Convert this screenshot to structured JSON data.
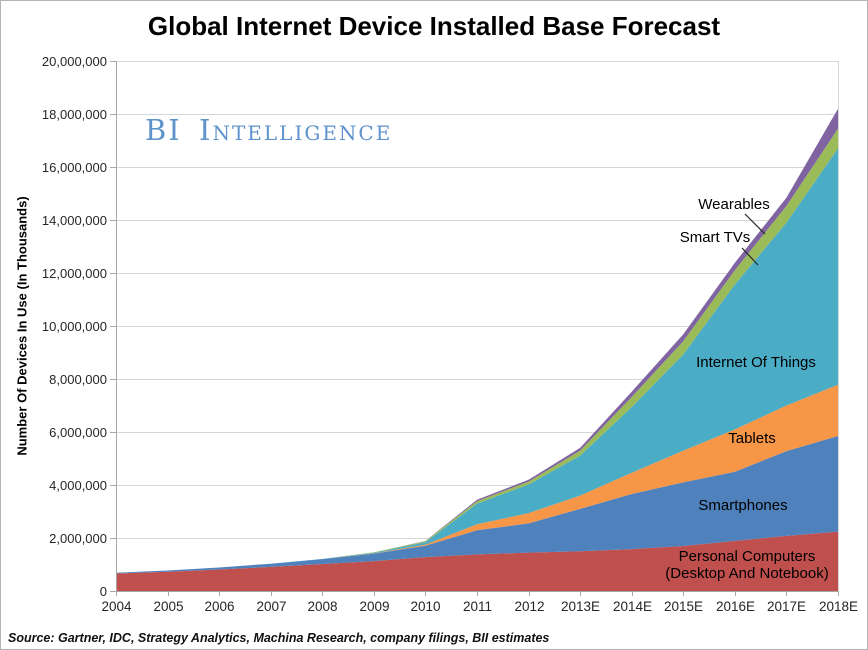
{
  "page": {
    "title": "Global Internet Device Installed Base Forecast",
    "watermark": "BI Intelligence",
    "source": "Source: Gartner, IDC, Strategy Analytics, Machina Research, company filings, BII estimates"
  },
  "chart_data": {
    "type": "area",
    "stacked": true,
    "title": "Global Internet Device Installed Base Forecast",
    "xlabel": "",
    "ylabel": "Number Of Devices In Use (In Thousands)",
    "ylim": [
      0,
      20000000
    ],
    "ytick_step": 2000000,
    "ytick_labels": [
      "0",
      "2,000,000",
      "4,000,000",
      "6,000,000",
      "8,000,000",
      "10,000,000",
      "12,000,000",
      "14,000,000",
      "16,000,000",
      "18,000,000",
      "20,000,000"
    ],
    "grid": true,
    "legend_position": "labels-inside-chart",
    "categories": [
      "2004",
      "2005",
      "2006",
      "2007",
      "2008",
      "2009",
      "2010",
      "2011",
      "2012",
      "2013E",
      "2014E",
      "2015E",
      "2016E",
      "2017E",
      "2018E"
    ],
    "series": [
      {
        "name": "Personal Computers (Desktop And Notebook)",
        "color": "#C0504D",
        "values": [
          660000,
          730000,
          810000,
          910000,
          1020000,
          1130000,
          1280000,
          1380000,
          1450000,
          1500000,
          1580000,
          1700000,
          1890000,
          2080000,
          2240000
        ]
      },
      {
        "name": "Smartphones",
        "color": "#4F81BD",
        "values": [
          25000,
          45000,
          75000,
          120000,
          185000,
          280000,
          430000,
          910000,
          1100000,
          1600000,
          2080000,
          2400000,
          2610000,
          3200000,
          3610000
        ]
      },
      {
        "name": "Tablets",
        "color": "#F79646",
        "values": [
          0,
          0,
          0,
          0,
          0,
          10000,
          40000,
          230000,
          390000,
          500000,
          800000,
          1200000,
          1600000,
          1720000,
          1930000
        ]
      },
      {
        "name": "Internet Of Things",
        "color": "#4BACC6",
        "values": [
          0,
          0,
          0,
          0,
          5000,
          25000,
          90000,
          780000,
          1080000,
          1510000,
          2480000,
          3630000,
          5470000,
          6900000,
          8920000
        ]
      },
      {
        "name": "Smart TVs",
        "color": "#9BBB59",
        "values": [
          0,
          0,
          0,
          0,
          0,
          15000,
          40000,
          90000,
          110000,
          190000,
          380000,
          500000,
          540000,
          630000,
          750000
        ]
      },
      {
        "name": "Wearables",
        "color": "#8064A2",
        "values": [
          0,
          0,
          0,
          0,
          0,
          0,
          5000,
          50000,
          70000,
          100000,
          200000,
          260000,
          280000,
          310000,
          750000
        ]
      }
    ],
    "annotations": [
      {
        "id": "wearables",
        "text": "Wearables",
        "x": 733,
        "y": 208,
        "line": [
          744,
          213,
          764,
          233
        ]
      },
      {
        "id": "smart-tvs",
        "text": "Smart TVs",
        "x": 714,
        "y": 241,
        "line": [
          741,
          247,
          757,
          264
        ]
      },
      {
        "id": "internet-of-things",
        "text": "Internet Of Things",
        "x": 755,
        "y": 366
      },
      {
        "id": "tablets",
        "text": "Tablets",
        "x": 751,
        "y": 442
      },
      {
        "id": "smartphones",
        "text": "Smartphones",
        "x": 742,
        "y": 509
      },
      {
        "id": "personal-computers-1",
        "text": "Personal Computers",
        "x": 746,
        "y": 560
      },
      {
        "id": "personal-computers-2",
        "text": "(Desktop And Notebook)",
        "x": 746,
        "y": 577
      }
    ],
    "axis_colors": {
      "axis_line": "#a6a6a6",
      "gridline": "#d6d6d6",
      "tick_text": "#262626",
      "annotation_text": "#000000",
      "callout_line": "#262626"
    }
  }
}
